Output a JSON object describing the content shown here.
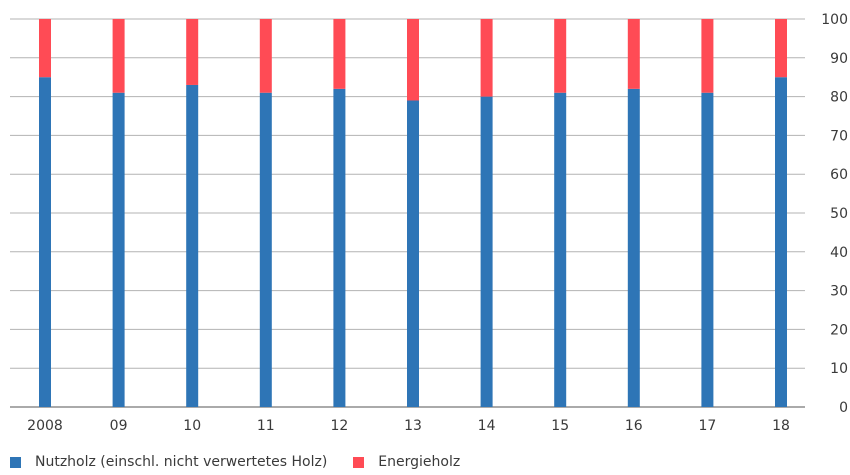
{
  "chart_data": {
    "type": "bar",
    "stacked": true,
    "categories": [
      "2008",
      "09",
      "10",
      "11",
      "12",
      "13",
      "14",
      "15",
      "16",
      "17",
      "18"
    ],
    "series": [
      {
        "name": "Nutzholz (einschl. nicht verwertetes Holz)",
        "color": "#2e75b6",
        "values": [
          85,
          81,
          83,
          81,
          82,
          79,
          80,
          81,
          82,
          81,
          85
        ]
      },
      {
        "name": "Energieholz",
        "color": "#ff4b55",
        "values": [
          15,
          19,
          17,
          19,
          18,
          21,
          20,
          19,
          18,
          19,
          15
        ]
      }
    ],
    "ylim": [
      0,
      100
    ],
    "yticks": [
      0,
      10,
      20,
      30,
      40,
      50,
      60,
      70,
      80,
      90,
      100
    ],
    "y_axis_side": "right",
    "grid": true,
    "legend_position": "bottom-left"
  }
}
